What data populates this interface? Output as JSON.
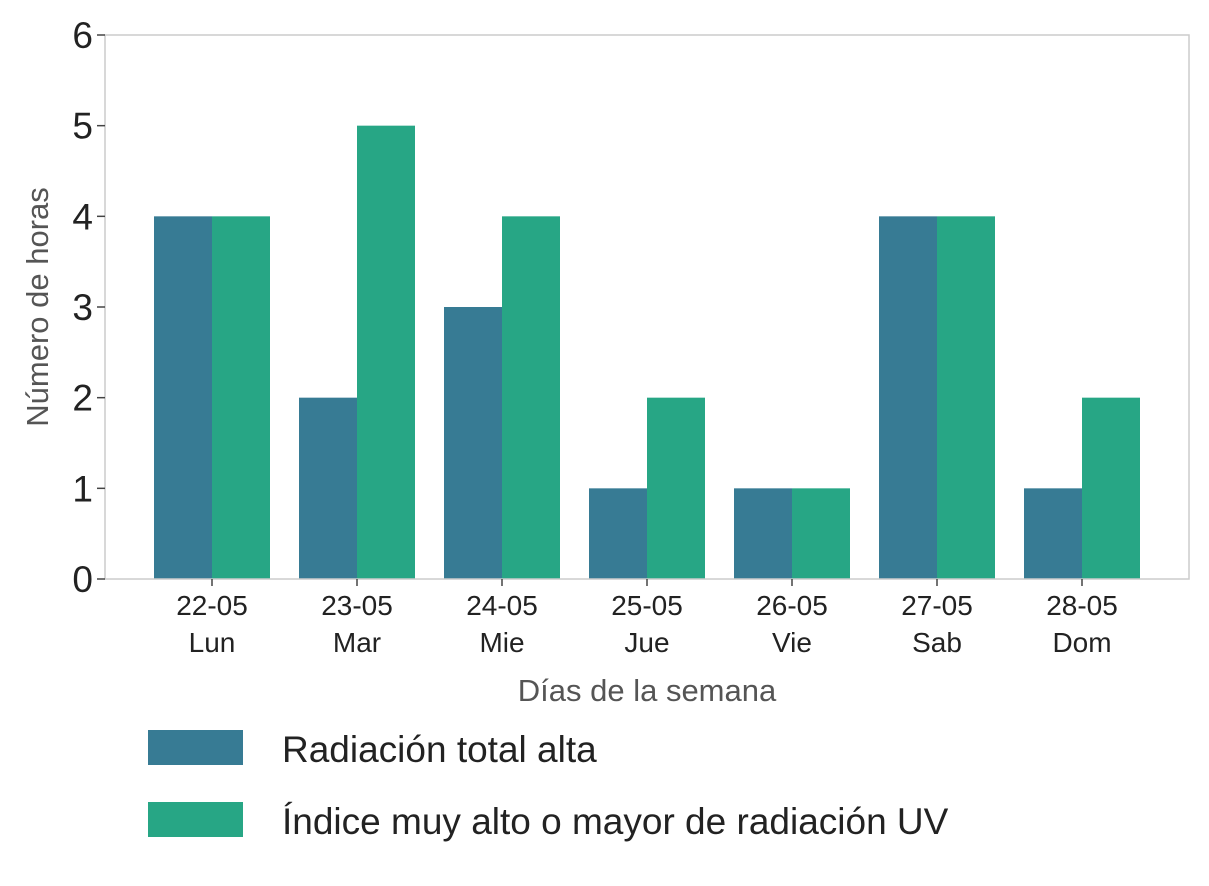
{
  "chart_data": {
    "type": "bar",
    "title": "",
    "xlabel": "Días de la semana",
    "ylabel": "Número de horas",
    "ylim": [
      0,
      6
    ],
    "yticks": [
      "0",
      "1",
      "2",
      "3",
      "4",
      "5",
      "6"
    ],
    "categories": [
      {
        "date": "22-05",
        "day": "Lun"
      },
      {
        "date": "23-05",
        "day": "Mar"
      },
      {
        "date": "24-05",
        "day": "Mie"
      },
      {
        "date": "25-05",
        "day": "Jue"
      },
      {
        "date": "26-05",
        "day": "Vie"
      },
      {
        "date": "27-05",
        "day": "Sab"
      },
      {
        "date": "28-05",
        "day": "Dom"
      }
    ],
    "series": [
      {
        "name": "Radiación total alta",
        "color": "#377b94",
        "values": [
          4,
          2,
          3,
          1,
          1,
          4,
          1
        ]
      },
      {
        "name": "Índice muy alto o mayor de radiación UV",
        "color": "#27a685",
        "values": [
          4,
          5,
          4,
          2,
          1,
          4,
          2
        ]
      }
    ],
    "grid": false,
    "legend_position": "bottom"
  }
}
